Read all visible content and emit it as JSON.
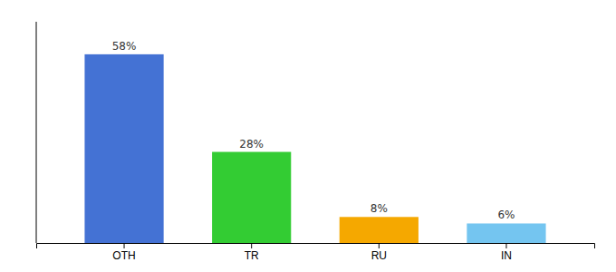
{
  "chart_data": {
    "type": "bar",
    "categories": [
      "OTH",
      "TR",
      "RU",
      "IN"
    ],
    "values": [
      58,
      28,
      8,
      6
    ],
    "value_labels": [
      "58%",
      "28%",
      "8%",
      "6%"
    ],
    "colors": [
      "#4472d4",
      "#33cc33",
      "#f5a800",
      "#74c5f0"
    ],
    "ylim": [
      0,
      68
    ],
    "data_labels": true,
    "tick_labels": "x",
    "grid": false
  }
}
